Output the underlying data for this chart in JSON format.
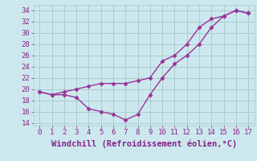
{
  "line1_x": [
    0,
    1,
    2,
    3,
    4,
    5,
    6,
    7,
    8,
    9,
    10,
    11,
    12,
    13,
    14,
    15,
    16,
    17
  ],
  "line1_y": [
    19.5,
    19.0,
    19.5,
    20.0,
    20.5,
    21.0,
    21.0,
    21.0,
    21.5,
    22.0,
    25.0,
    26.0,
    28.0,
    31.0,
    32.5,
    33.0,
    34.0,
    33.5
  ],
  "line2_x": [
    0,
    1,
    2,
    3,
    4,
    5,
    6,
    7,
    8,
    9,
    10,
    11,
    12,
    13,
    14,
    15,
    16,
    17
  ],
  "line2_y": [
    19.5,
    19.0,
    19.0,
    18.5,
    16.5,
    16.0,
    15.5,
    14.5,
    15.5,
    19.0,
    22.0,
    24.5,
    26.0,
    28.0,
    31.0,
    33.0,
    34.0,
    33.5
  ],
  "line_color": "#993399",
  "marker": "D",
  "marker_size": 2.5,
  "xlabel": "Windchill (Refroidissement éolien,°C)",
  "xlim": [
    -0.5,
    17.5
  ],
  "ylim": [
    13.5,
    35.0
  ],
  "yticks": [
    14,
    16,
    18,
    20,
    22,
    24,
    26,
    28,
    30,
    32,
    34
  ],
  "xticks": [
    0,
    1,
    2,
    3,
    4,
    5,
    6,
    7,
    8,
    9,
    10,
    11,
    12,
    13,
    14,
    15,
    16,
    17
  ],
  "background_color": "#cce8ee",
  "grid_color": "#aacccc",
  "label_color": "#882288",
  "tick_fontsize": 6.5,
  "xlabel_fontsize": 7.5
}
